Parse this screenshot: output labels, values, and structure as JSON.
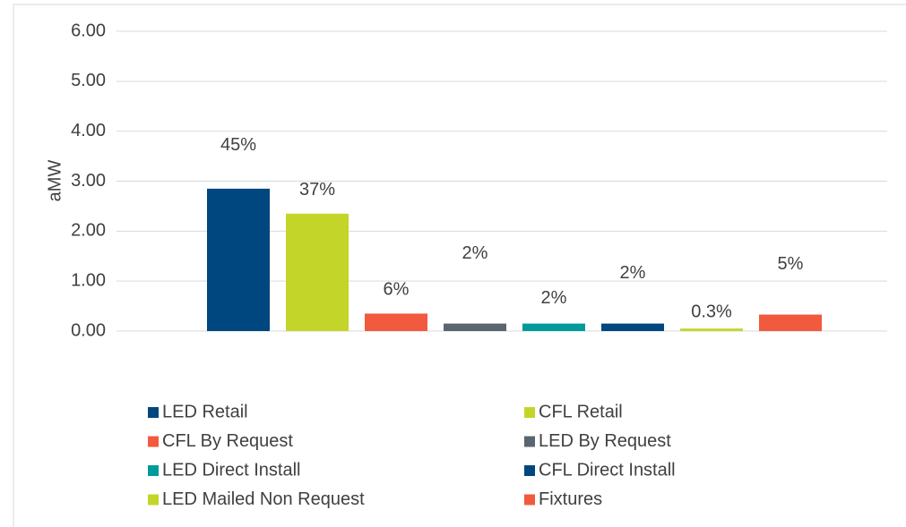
{
  "chart_data": {
    "type": "bar",
    "y_label": "aMW",
    "categories": [
      null
    ],
    "ylim": [
      0,
      6
    ],
    "yticks": [
      {
        "value": 0,
        "label": "0.00"
      },
      {
        "value": 1,
        "label": "1.00"
      },
      {
        "value": 2,
        "label": "2.00"
      },
      {
        "value": 3,
        "label": "3.00"
      },
      {
        "value": 4,
        "label": "4.00"
      },
      {
        "value": 5,
        "label": "5.00"
      },
      {
        "value": 6,
        "label": "6.00"
      }
    ],
    "grid": true,
    "series": [
      {
        "name": "LED Retail",
        "color": "#00467f",
        "values": [
          2.85
        ],
        "share_labels": [
          "45%"
        ]
      },
      {
        "name": "CFL Retail",
        "color": "#c4d52a",
        "values": [
          2.35
        ],
        "share_labels": [
          "37%"
        ]
      },
      {
        "name": "CFL By Request",
        "color": "#f15a3e",
        "values": [
          0.35
        ],
        "share_labels": [
          "6%"
        ]
      },
      {
        "name": "LED By Request",
        "color": "#5a6570",
        "values": [
          0.15
        ],
        "share_labels": [
          "2%"
        ]
      },
      {
        "name": "LED Direct Install",
        "color": "#009a9a",
        "values": [
          0.15
        ],
        "share_labels": [
          "2%"
        ]
      },
      {
        "name": "CFL Direct Install",
        "color": "#00467f",
        "values": [
          0.15
        ],
        "share_labels": [
          "2%"
        ]
      },
      {
        "name": "LED Mailed Non Request",
        "color": "#c4d52a",
        "values": [
          0.05
        ],
        "share_labels": [
          "0.3%"
        ]
      },
      {
        "name": "Fixtures",
        "color": "#f15a3e",
        "values": [
          0.33
        ],
        "share_labels": [
          "5%"
        ]
      }
    ]
  }
}
